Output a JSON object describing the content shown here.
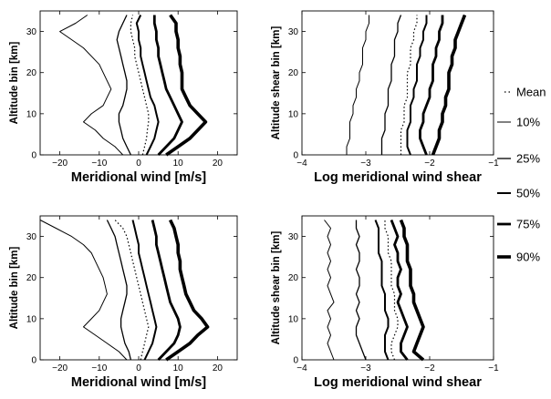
{
  "legend": {
    "items": [
      {
        "label": "Mean",
        "style": "dotted"
      },
      {
        "label": "10%",
        "style": "thin"
      },
      {
        "label": "25%",
        "style": "thin"
      },
      {
        "label": "50%",
        "style": "medium"
      },
      {
        "label": "75%",
        "style": "thick"
      },
      {
        "label": "90%",
        "style": "thickest"
      }
    ]
  },
  "chart_data": [
    {
      "type": "line",
      "panel": "top-left",
      "xlabel": "Meridional wind [m/s]",
      "ylabel": "Altitude bin [km]",
      "xlim": [
        -25,
        25
      ],
      "ylim": [
        0,
        35
      ],
      "xticks": [
        -20,
        -10,
        0,
        10,
        20
      ],
      "yticks": [
        0,
        10,
        20,
        30
      ],
      "y": [
        0,
        2,
        4,
        6,
        8,
        10,
        12,
        14,
        16,
        18,
        20,
        22,
        24,
        26,
        28,
        30,
        32,
        34
      ],
      "series": [
        {
          "name": "10%",
          "x": [
            -4,
            -6,
            -9,
            -11,
            -14,
            -12,
            -9,
            -8,
            -7,
            -8,
            -9,
            -10,
            -12,
            -14,
            -17,
            -20,
            -16,
            -13
          ]
        },
        {
          "name": "25%",
          "x": [
            -2,
            -3,
            -4,
            -4.5,
            -5,
            -5,
            -4,
            -3.5,
            -3,
            -3,
            -3.5,
            -4,
            -4.5,
            -5,
            -5.5,
            -5,
            -4,
            -3
          ]
        },
        {
          "name": "Mean",
          "x": [
            1,
            1.5,
            2,
            2.2,
            2.5,
            2.5,
            2,
            1.5,
            1,
            0.5,
            0,
            -0.5,
            -1,
            -1,
            -1.5,
            -2,
            -2,
            -1.5
          ]
        },
        {
          "name": "50%",
          "x": [
            2,
            3,
            4,
            4.5,
            5,
            4.5,
            4,
            3,
            2.5,
            2,
            1.5,
            1,
            0.5,
            0.5,
            0,
            0,
            -0.5,
            0.5
          ]
        },
        {
          "name": "75%",
          "x": [
            5,
            7,
            9,
            10,
            11,
            10,
            9,
            8,
            7,
            6.5,
            6,
            5.5,
            5,
            5,
            4.5,
            4.5,
            4,
            4
          ]
        },
        {
          "name": "90%",
          "x": [
            7,
            10,
            13,
            15,
            17,
            15,
            13,
            12,
            11,
            11,
            11,
            10.5,
            10.5,
            10,
            10,
            9.5,
            9.5,
            8
          ]
        }
      ]
    },
    {
      "type": "line",
      "panel": "top-right",
      "xlabel": "Log meridional wind shear",
      "ylabel": "Altitude shear bin [km]",
      "xlim": [
        -4,
        -1
      ],
      "ylim": [
        0,
        35
      ],
      "xticks": [
        -4,
        -3,
        -2,
        -1
      ],
      "yticks": [
        0,
        10,
        20,
        30
      ],
      "y": [
        0,
        2,
        4,
        6,
        8,
        10,
        12,
        14,
        16,
        18,
        20,
        22,
        24,
        26,
        28,
        30,
        32,
        34
      ],
      "series": [
        {
          "name": "10%",
          "x": [
            -3.3,
            -3.3,
            -3.25,
            -3.25,
            -3.25,
            -3.2,
            -3.2,
            -3.15,
            -3.15,
            -3.1,
            -3.1,
            -3.05,
            -3.05,
            -3.05,
            -3.0,
            -3.0,
            -2.95,
            -2.95
          ]
        },
        {
          "name": "25%",
          "x": [
            -2.75,
            -2.75,
            -2.75,
            -2.7,
            -2.7,
            -2.7,
            -2.65,
            -2.65,
            -2.65,
            -2.6,
            -2.6,
            -2.6,
            -2.55,
            -2.55,
            -2.55,
            -2.5,
            -2.5,
            -2.45
          ]
        },
        {
          "name": "Mean",
          "x": [
            -2.45,
            -2.45,
            -2.45,
            -2.45,
            -2.4,
            -2.4,
            -2.4,
            -2.35,
            -2.35,
            -2.35,
            -2.35,
            -2.3,
            -2.3,
            -2.3,
            -2.25,
            -2.25,
            -2.2,
            -2.2
          ]
        },
        {
          "name": "50%",
          "x": [
            -2.3,
            -2.35,
            -2.35,
            -2.35,
            -2.3,
            -2.3,
            -2.3,
            -2.25,
            -2.25,
            -2.2,
            -2.2,
            -2.2,
            -2.15,
            -2.15,
            -2.1,
            -2.1,
            -2.05,
            -2.05
          ]
        },
        {
          "name": "75%",
          "x": [
            -2.05,
            -2.1,
            -2.15,
            -2.15,
            -2.1,
            -2.1,
            -2.05,
            -2.0,
            -2.0,
            -1.95,
            -1.95,
            -1.95,
            -1.9,
            -1.9,
            -1.85,
            -1.85,
            -1.8,
            -1.8
          ]
        },
        {
          "name": "90%",
          "x": [
            -1.95,
            -1.9,
            -1.85,
            -1.85,
            -1.8,
            -1.8,
            -1.75,
            -1.75,
            -1.7,
            -1.7,
            -1.7,
            -1.65,
            -1.65,
            -1.6,
            -1.6,
            -1.55,
            -1.5,
            -1.45
          ]
        }
      ]
    },
    {
      "type": "line",
      "panel": "bottom-left",
      "xlabel": "Meridional wind [m/s]",
      "ylabel": "Altitude bin [km]",
      "xlim": [
        -25,
        25
      ],
      "ylim": [
        0,
        35
      ],
      "xticks": [
        -20,
        -10,
        0,
        10,
        20
      ],
      "yticks": [
        0,
        10,
        20,
        30
      ],
      "y": [
        0,
        2,
        4,
        6,
        8,
        10,
        12,
        14,
        16,
        18,
        20,
        22,
        24,
        26,
        28,
        30,
        32,
        34
      ],
      "series": [
        {
          "name": "10%",
          "x": [
            -3,
            -5,
            -8,
            -11,
            -14,
            -12,
            -10,
            -9,
            -8,
            -8.5,
            -9,
            -10,
            -11,
            -12,
            -14,
            -17,
            -21,
            -25
          ]
        },
        {
          "name": "25%",
          "x": [
            -2,
            -2.5,
            -3.5,
            -4,
            -4.5,
            -4.5,
            -4,
            -3.5,
            -3,
            -3,
            -3.5,
            -4,
            -4.5,
            -5,
            -5.5,
            -6,
            -7,
            -8
          ]
        },
        {
          "name": "Mean",
          "x": [
            0.5,
            1,
            1.5,
            2,
            2.5,
            2,
            1.5,
            1,
            0.5,
            0,
            -0.5,
            -1,
            -1.5,
            -2,
            -2.5,
            -3,
            -4,
            -6
          ]
        },
        {
          "name": "50%",
          "x": [
            1.5,
            2.5,
            3.5,
            4,
            4.5,
            4,
            3.5,
            3,
            2.5,
            2,
            1.5,
            1,
            0.5,
            0,
            0,
            -0.5,
            -1,
            -1.5
          ]
        },
        {
          "name": "75%",
          "x": [
            5,
            7,
            9,
            10,
            10.5,
            10,
            9,
            8,
            7.5,
            7,
            6.5,
            6,
            5.5,
            5,
            4.5,
            4.5,
            4,
            3.5
          ]
        },
        {
          "name": "90%",
          "x": [
            7,
            10,
            13,
            15,
            17.5,
            16,
            14,
            13,
            12,
            11.5,
            11,
            10.5,
            10.5,
            10,
            10,
            9.5,
            9,
            8
          ]
        }
      ]
    },
    {
      "type": "line",
      "panel": "bottom-right",
      "xlabel": "Log meridional wind shear",
      "ylabel": "Altitude shear bin  [km]",
      "xlim": [
        -4,
        -1
      ],
      "ylim": [
        0,
        35
      ],
      "xticks": [
        -4,
        -3,
        -2,
        -1
      ],
      "yticks": [
        0,
        10,
        20,
        30
      ],
      "y": [
        0,
        2,
        4,
        6,
        8,
        10,
        12,
        14,
        16,
        18,
        20,
        22,
        24,
        26,
        28,
        30,
        32,
        34
      ],
      "series": [
        {
          "name": "10%",
          "x": [
            -3.5,
            -3.55,
            -3.6,
            -3.55,
            -3.6,
            -3.55,
            -3.6,
            -3.5,
            -3.55,
            -3.6,
            -3.55,
            -3.6,
            -3.55,
            -3.6,
            -3.55,
            -3.6,
            -3.55,
            -3.65
          ]
        },
        {
          "name": "25%",
          "x": [
            -3.0,
            -3.05,
            -3.1,
            -3.15,
            -3.15,
            -3.1,
            -3.15,
            -3.1,
            -3.15,
            -3.1,
            -3.1,
            -3.15,
            -3.1,
            -3.1,
            -3.15,
            -3.1,
            -3.15,
            -3.15
          ]
        },
        {
          "name": "Mean",
          "x": [
            -2.55,
            -2.6,
            -2.6,
            -2.55,
            -2.5,
            -2.5,
            -2.55,
            -2.55,
            -2.55,
            -2.6,
            -2.6,
            -2.6,
            -2.6,
            -2.65,
            -2.65,
            -2.65,
            -2.7,
            -2.7
          ]
        },
        {
          "name": "50%",
          "x": [
            -2.65,
            -2.7,
            -2.7,
            -2.7,
            -2.65,
            -2.65,
            -2.7,
            -2.7,
            -2.7,
            -2.75,
            -2.75,
            -2.75,
            -2.75,
            -2.8,
            -2.8,
            -2.8,
            -2.8,
            -2.85
          ]
        },
        {
          "name": "75%",
          "x": [
            -2.35,
            -2.45,
            -2.45,
            -2.4,
            -2.35,
            -2.4,
            -2.45,
            -2.5,
            -2.45,
            -2.5,
            -2.5,
            -2.45,
            -2.5,
            -2.5,
            -2.55,
            -2.5,
            -2.55,
            -2.6
          ]
        },
        {
          "name": "90%",
          "x": [
            -2.1,
            -2.25,
            -2.2,
            -2.15,
            -2.1,
            -2.15,
            -2.2,
            -2.25,
            -2.25,
            -2.3,
            -2.3,
            -2.3,
            -2.35,
            -2.35,
            -2.35,
            -2.4,
            -2.4,
            -2.45
          ]
        }
      ]
    }
  ]
}
